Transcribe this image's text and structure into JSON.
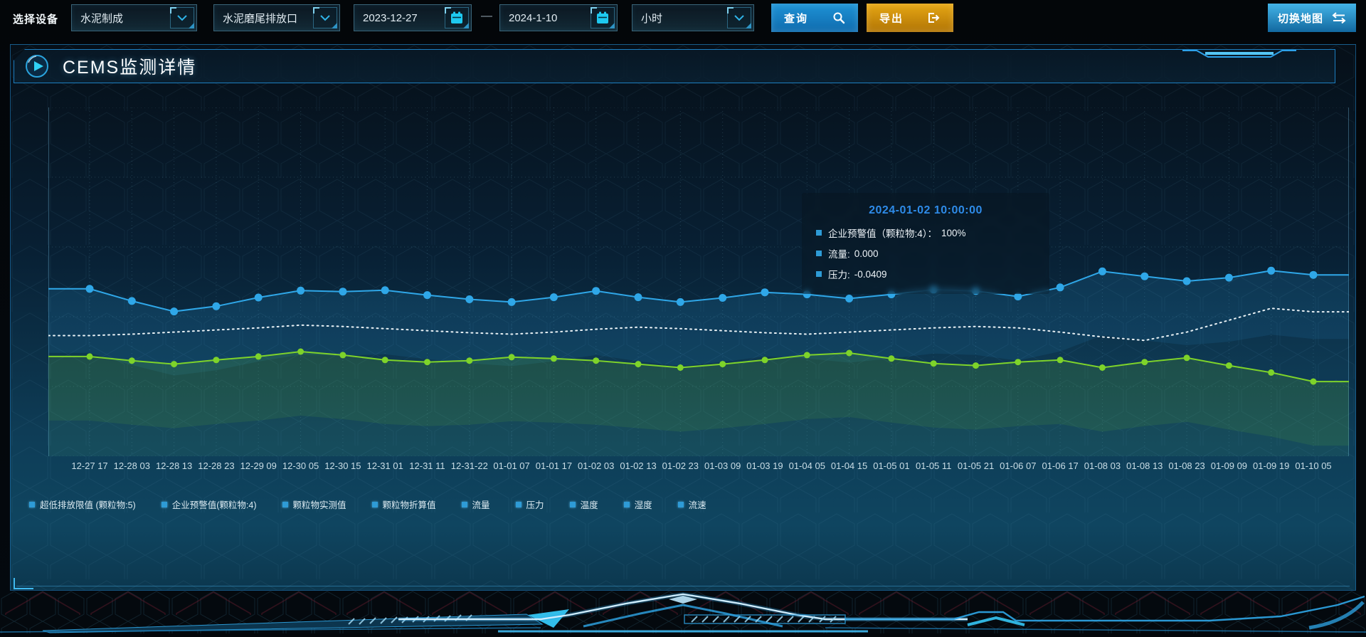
{
  "toolbar": {
    "device_label": "选择设备",
    "device_select": "水泥制成",
    "outlet_select": "水泥磨尾排放口",
    "date_start": "2023-12-27",
    "date_separator": "—",
    "date_end": "2024-1-10",
    "interval_select": "小时",
    "query_label": "查询",
    "export_label": "导出",
    "switch_map_label": "切换地图"
  },
  "panel": {
    "title": "CEMS监测详情"
  },
  "tooltip": {
    "title": "2024-01-02 10:00:00",
    "rows": [
      {
        "label": "企业预警值（颗粒物:4）：",
        "value": "100%"
      },
      {
        "label": "流量:",
        "value": "0.000"
      },
      {
        "label": "压力:",
        "value": "-0.0409"
      }
    ]
  },
  "legend": {
    "marker_color": "#2e9bd6",
    "items": [
      {
        "label": "超低排放限值 (颗粒物:5)"
      },
      {
        "label": "企业预警值(颗粒物:4)"
      },
      {
        "label": "颗粒物实测值"
      },
      {
        "label": "颗粒物折算值"
      },
      {
        "label": "流量"
      },
      {
        "label": "压力"
      },
      {
        "label": "温度"
      },
      {
        "label": "湿度"
      },
      {
        "label": "流速"
      }
    ]
  },
  "chart_data": {
    "type": "line",
    "title": "",
    "xlabel": "",
    "ylabel": "",
    "ylim": [
      0,
      100
    ],
    "grid": "dotted",
    "legend_position": "bottom",
    "x_labels": [
      "12-27 17",
      "12-28 03",
      "12-28 13",
      "12-28 23",
      "12-29 09",
      "12-30 05",
      "12-30 15",
      "12-31 01",
      "12-31 11",
      "12-31-22",
      "01-01 07",
      "01-01 17",
      "01-02 03",
      "01-02 13",
      "01-02 23",
      "01-03 09",
      "01-03 19",
      "01-04 05",
      "01-04 15",
      "01-05 01",
      "01-05 11",
      "01-05 21",
      "01-06 07",
      "01-06 17",
      "01-08 03",
      "01-08 13",
      "01-08 23",
      "01-09 09",
      "01-09 19",
      "01-10 05"
    ],
    "series": [
      {
        "name": "企业预警值(颗粒物:4)",
        "color": "#2fa7e8",
        "style": "solid",
        "points": true,
        "area": true,
        "values": [
          48,
          44.5,
          41.5,
          43,
          45.5,
          47.5,
          47.2,
          47.6,
          46.2,
          45,
          44.2,
          45.6,
          47.4,
          45.6,
          44.2,
          45.4,
          47,
          46.4,
          45.2,
          46.4,
          47.8,
          47.4,
          45.8,
          48.4,
          53,
          51.6,
          50.2,
          51.2,
          53.2,
          52
        ]
      },
      {
        "name": "压力",
        "color": "#e9f1f5",
        "style": "dotted",
        "points": false,
        "area": false,
        "values": [
          34.6,
          35,
          35.6,
          36.2,
          36.8,
          37.6,
          37.2,
          36.6,
          36,
          35.4,
          35,
          35.6,
          36.4,
          37,
          36.6,
          36,
          35.4,
          35,
          35.6,
          36.2,
          36.8,
          37.2,
          36.8,
          35.6,
          34.2,
          33.2,
          35.6,
          39,
          42.4,
          41.4
        ]
      },
      {
        "name": "流量",
        "color": "#7ed32a",
        "style": "solid",
        "points": true,
        "area": true,
        "values": [
          28.6,
          27.4,
          26.4,
          27.6,
          28.6,
          30,
          29,
          27.6,
          27,
          27.4,
          28.4,
          28,
          27.4,
          26.4,
          25.4,
          26.4,
          27.6,
          29,
          29.6,
          28,
          26.6,
          26,
          27,
          27.6,
          25.4,
          27,
          28.2,
          26,
          24,
          21.4
        ]
      }
    ]
  },
  "colors": {
    "accent_blue": "#2fa7e8",
    "export_orange": "#df9b10",
    "series_green": "#7ed32a",
    "tooltip_title": "#2e8be8",
    "calendar_icon": "#1ec9f0"
  }
}
